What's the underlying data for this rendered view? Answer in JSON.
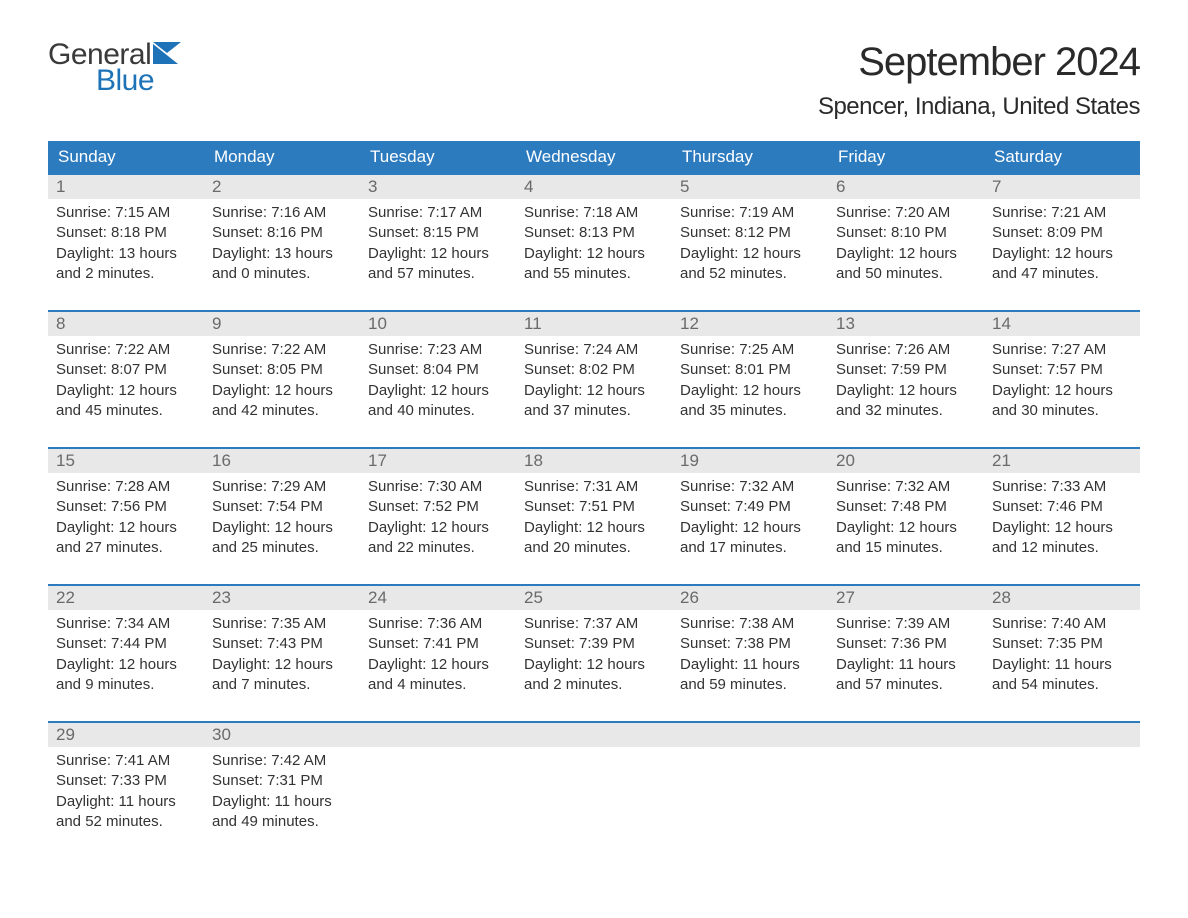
{
  "logo": {
    "general": "General",
    "blue": "Blue",
    "flag_color": "#1e72b8"
  },
  "title": "September 2024",
  "location": "Spencer, Indiana, United States",
  "weekdays": [
    "Sunday",
    "Monday",
    "Tuesday",
    "Wednesday",
    "Thursday",
    "Friday",
    "Saturday"
  ],
  "colors": {
    "header_bg": "#2d7bbf",
    "header_text": "#ffffff",
    "daynum_bg": "#e8e8e8",
    "daynum_text": "#6a6a6a",
    "row_border": "#2d7bbf",
    "body_text": "#333333"
  },
  "weeks": [
    [
      {
        "day": "1",
        "sunrise": "Sunrise: 7:15 AM",
        "sunset": "Sunset: 8:18 PM",
        "daylight": "Daylight: 13 hours and 2 minutes."
      },
      {
        "day": "2",
        "sunrise": "Sunrise: 7:16 AM",
        "sunset": "Sunset: 8:16 PM",
        "daylight": "Daylight: 13 hours and 0 minutes."
      },
      {
        "day": "3",
        "sunrise": "Sunrise: 7:17 AM",
        "sunset": "Sunset: 8:15 PM",
        "daylight": "Daylight: 12 hours and 57 minutes."
      },
      {
        "day": "4",
        "sunrise": "Sunrise: 7:18 AM",
        "sunset": "Sunset: 8:13 PM",
        "daylight": "Daylight: 12 hours and 55 minutes."
      },
      {
        "day": "5",
        "sunrise": "Sunrise: 7:19 AM",
        "sunset": "Sunset: 8:12 PM",
        "daylight": "Daylight: 12 hours and 52 minutes."
      },
      {
        "day": "6",
        "sunrise": "Sunrise: 7:20 AM",
        "sunset": "Sunset: 8:10 PM",
        "daylight": "Daylight: 12 hours and 50 minutes."
      },
      {
        "day": "7",
        "sunrise": "Sunrise: 7:21 AM",
        "sunset": "Sunset: 8:09 PM",
        "daylight": "Daylight: 12 hours and 47 minutes."
      }
    ],
    [
      {
        "day": "8",
        "sunrise": "Sunrise: 7:22 AM",
        "sunset": "Sunset: 8:07 PM",
        "daylight": "Daylight: 12 hours and 45 minutes."
      },
      {
        "day": "9",
        "sunrise": "Sunrise: 7:22 AM",
        "sunset": "Sunset: 8:05 PM",
        "daylight": "Daylight: 12 hours and 42 minutes."
      },
      {
        "day": "10",
        "sunrise": "Sunrise: 7:23 AM",
        "sunset": "Sunset: 8:04 PM",
        "daylight": "Daylight: 12 hours and 40 minutes."
      },
      {
        "day": "11",
        "sunrise": "Sunrise: 7:24 AM",
        "sunset": "Sunset: 8:02 PM",
        "daylight": "Daylight: 12 hours and 37 minutes."
      },
      {
        "day": "12",
        "sunrise": "Sunrise: 7:25 AM",
        "sunset": "Sunset: 8:01 PM",
        "daylight": "Daylight: 12 hours and 35 minutes."
      },
      {
        "day": "13",
        "sunrise": "Sunrise: 7:26 AM",
        "sunset": "Sunset: 7:59 PM",
        "daylight": "Daylight: 12 hours and 32 minutes."
      },
      {
        "day": "14",
        "sunrise": "Sunrise: 7:27 AM",
        "sunset": "Sunset: 7:57 PM",
        "daylight": "Daylight: 12 hours and 30 minutes."
      }
    ],
    [
      {
        "day": "15",
        "sunrise": "Sunrise: 7:28 AM",
        "sunset": "Sunset: 7:56 PM",
        "daylight": "Daylight: 12 hours and 27 minutes."
      },
      {
        "day": "16",
        "sunrise": "Sunrise: 7:29 AM",
        "sunset": "Sunset: 7:54 PM",
        "daylight": "Daylight: 12 hours and 25 minutes."
      },
      {
        "day": "17",
        "sunrise": "Sunrise: 7:30 AM",
        "sunset": "Sunset: 7:52 PM",
        "daylight": "Daylight: 12 hours and 22 minutes."
      },
      {
        "day": "18",
        "sunrise": "Sunrise: 7:31 AM",
        "sunset": "Sunset: 7:51 PM",
        "daylight": "Daylight: 12 hours and 20 minutes."
      },
      {
        "day": "19",
        "sunrise": "Sunrise: 7:32 AM",
        "sunset": "Sunset: 7:49 PM",
        "daylight": "Daylight: 12 hours and 17 minutes."
      },
      {
        "day": "20",
        "sunrise": "Sunrise: 7:32 AM",
        "sunset": "Sunset: 7:48 PM",
        "daylight": "Daylight: 12 hours and 15 minutes."
      },
      {
        "day": "21",
        "sunrise": "Sunrise: 7:33 AM",
        "sunset": "Sunset: 7:46 PM",
        "daylight": "Daylight: 12 hours and 12 minutes."
      }
    ],
    [
      {
        "day": "22",
        "sunrise": "Sunrise: 7:34 AM",
        "sunset": "Sunset: 7:44 PM",
        "daylight": "Daylight: 12 hours and 9 minutes."
      },
      {
        "day": "23",
        "sunrise": "Sunrise: 7:35 AM",
        "sunset": "Sunset: 7:43 PM",
        "daylight": "Daylight: 12 hours and 7 minutes."
      },
      {
        "day": "24",
        "sunrise": "Sunrise: 7:36 AM",
        "sunset": "Sunset: 7:41 PM",
        "daylight": "Daylight: 12 hours and 4 minutes."
      },
      {
        "day": "25",
        "sunrise": "Sunrise: 7:37 AM",
        "sunset": "Sunset: 7:39 PM",
        "daylight": "Daylight: 12 hours and 2 minutes."
      },
      {
        "day": "26",
        "sunrise": "Sunrise: 7:38 AM",
        "sunset": "Sunset: 7:38 PM",
        "daylight": "Daylight: 11 hours and 59 minutes."
      },
      {
        "day": "27",
        "sunrise": "Sunrise: 7:39 AM",
        "sunset": "Sunset: 7:36 PM",
        "daylight": "Daylight: 11 hours and 57 minutes."
      },
      {
        "day": "28",
        "sunrise": "Sunrise: 7:40 AM",
        "sunset": "Sunset: 7:35 PM",
        "daylight": "Daylight: 11 hours and 54 minutes."
      }
    ],
    [
      {
        "day": "29",
        "sunrise": "Sunrise: 7:41 AM",
        "sunset": "Sunset: 7:33 PM",
        "daylight": "Daylight: 11 hours and 52 minutes."
      },
      {
        "day": "30",
        "sunrise": "Sunrise: 7:42 AM",
        "sunset": "Sunset: 7:31 PM",
        "daylight": "Daylight: 11 hours and 49 minutes."
      },
      {
        "empty": true
      },
      {
        "empty": true
      },
      {
        "empty": true
      },
      {
        "empty": true
      },
      {
        "empty": true
      }
    ]
  ]
}
